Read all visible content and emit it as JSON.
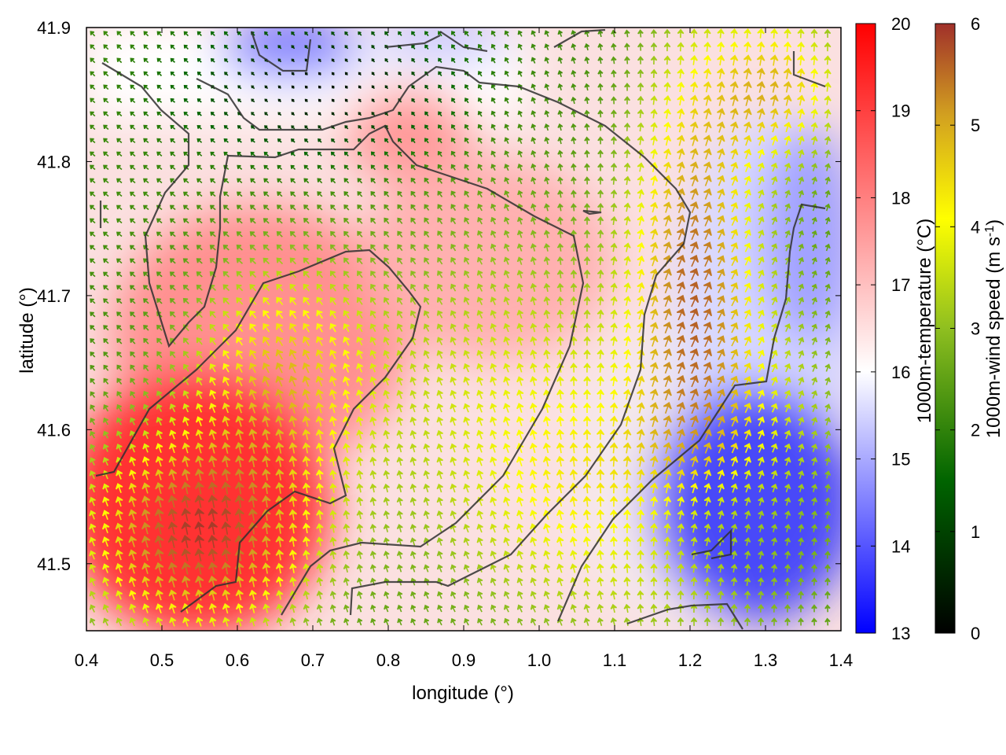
{
  "chart_data": {
    "type": "heatmap",
    "xlabel": "longitude (°)",
    "ylabel": "latitude (°)",
    "xlim": [
      0.4,
      1.4
    ],
    "ylim": [
      41.45,
      41.9
    ],
    "x_ticks": [
      "0.4",
      "0.5",
      "0.6",
      "0.7",
      "0.8",
      "0.9",
      "1.0",
      "1.1",
      "1.2",
      "1.3",
      "1.4"
    ],
    "y_ticks": [
      "41.5",
      "41.6",
      "41.7",
      "41.8",
      "41.9"
    ],
    "temperature_colorbar": {
      "label": "1000m-temperature (°C)",
      "range": [
        13,
        20
      ],
      "ticks": [
        "13",
        "14",
        "15",
        "16",
        "17",
        "18",
        "19",
        "20"
      ],
      "colors": [
        "#0000ff",
        "#ffffff",
        "#ff0000"
      ]
    },
    "wind_colorbar": {
      "label_main": "1000m-wind speed (m s",
      "label_sup": "-1",
      "label_end": ")",
      "range": [
        0,
        6
      ],
      "ticks": [
        "0",
        "1",
        "2",
        "3",
        "4",
        "5",
        "6"
      ],
      "colors": [
        "#000000",
        "#006400",
        "#9acd32",
        "#ffff00",
        "#d2a020",
        "#b22222"
      ]
    }
  }
}
